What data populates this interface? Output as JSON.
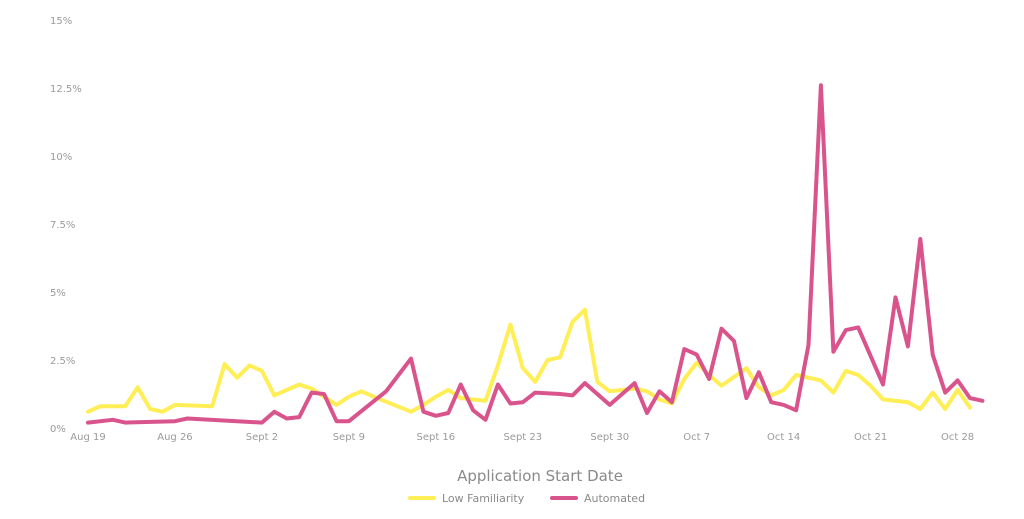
{
  "chart_data": {
    "type": "line",
    "title": "",
    "xlabel": "Application Start Date",
    "ylabel": "",
    "ylim": [
      0,
      15
    ],
    "y_ticks": [
      {
        "value": 0,
        "label": "0%"
      },
      {
        "value": 2.5,
        "label": "2.5%"
      },
      {
        "value": 5,
        "label": "5%"
      },
      {
        "value": 7.5,
        "label": "7.5%"
      },
      {
        "value": 10,
        "label": "10%"
      },
      {
        "value": 12.5,
        "label": "12.5%"
      },
      {
        "value": 15,
        "label": "15%"
      }
    ],
    "xlim": [
      "2024-08-19",
      "2024-10-29"
    ],
    "x_ticks": [
      {
        "date": "2024-08-19",
        "label": "Aug 19"
      },
      {
        "date": "2024-08-26",
        "label": "Aug 26"
      },
      {
        "date": "2024-09-02",
        "label": "Sept 2"
      },
      {
        "date": "2024-09-09",
        "label": "Sept 9"
      },
      {
        "date": "2024-09-16",
        "label": "Sept 16"
      },
      {
        "date": "2024-09-23",
        "label": "Sept 23"
      },
      {
        "date": "2024-09-30",
        "label": "Sept 30"
      },
      {
        "date": "2024-10-07",
        "label": "Oct 7"
      },
      {
        "date": "2024-10-14",
        "label": "Oct 14"
      },
      {
        "date": "2024-10-21",
        "label": "Oct 21"
      },
      {
        "date": "2024-10-28",
        "label": "Oct 28"
      }
    ],
    "grid": false,
    "legend_position": "bottom-center",
    "series": [
      {
        "name": "Low Familiarity",
        "color": "#ffee55",
        "points": [
          [
            "2024-08-19",
            0.6
          ],
          [
            "2024-08-20",
            0.8
          ],
          [
            "2024-08-22",
            0.8
          ],
          [
            "2024-08-23",
            1.5
          ],
          [
            "2024-08-24",
            0.7
          ],
          [
            "2024-08-25",
            0.6
          ],
          [
            "2024-08-26",
            0.85
          ],
          [
            "2024-08-29",
            0.8
          ],
          [
            "2024-08-30",
            2.35
          ],
          [
            "2024-08-31",
            1.85
          ],
          [
            "2024-09-01",
            2.3
          ],
          [
            "2024-09-02",
            2.1
          ],
          [
            "2024-09-03",
            1.2
          ],
          [
            "2024-09-05",
            1.6
          ],
          [
            "2024-09-06",
            1.45
          ],
          [
            "2024-09-08",
            0.85
          ],
          [
            "2024-09-09",
            1.15
          ],
          [
            "2024-09-10",
            1.35
          ],
          [
            "2024-09-11",
            1.15
          ],
          [
            "2024-09-14",
            0.6
          ],
          [
            "2024-09-15",
            0.85
          ],
          [
            "2024-09-16",
            1.15
          ],
          [
            "2024-09-17",
            1.4
          ],
          [
            "2024-09-18",
            1.1
          ],
          [
            "2024-09-20",
            1.0
          ],
          [
            "2024-09-21",
            2.3
          ],
          [
            "2024-09-22",
            3.8
          ],
          [
            "2024-09-23",
            2.2
          ],
          [
            "2024-09-24",
            1.7
          ],
          [
            "2024-09-25",
            2.5
          ],
          [
            "2024-09-26",
            2.6
          ],
          [
            "2024-09-27",
            3.9
          ],
          [
            "2024-09-28",
            4.35
          ],
          [
            "2024-09-29",
            1.7
          ],
          [
            "2024-09-30",
            1.35
          ],
          [
            "2024-10-02",
            1.45
          ],
          [
            "2024-10-03",
            1.35
          ],
          [
            "2024-10-04",
            1.05
          ],
          [
            "2024-10-05",
            0.9
          ],
          [
            "2024-10-06",
            1.8
          ],
          [
            "2024-10-07",
            2.4
          ],
          [
            "2024-10-08",
            1.95
          ],
          [
            "2024-10-09",
            1.55
          ],
          [
            "2024-10-11",
            2.2
          ],
          [
            "2024-10-12",
            1.5
          ],
          [
            "2024-10-13",
            1.2
          ],
          [
            "2024-10-14",
            1.4
          ],
          [
            "2024-10-15",
            1.95
          ],
          [
            "2024-10-17",
            1.75
          ],
          [
            "2024-10-18",
            1.3
          ],
          [
            "2024-10-19",
            2.1
          ],
          [
            "2024-10-20",
            1.95
          ],
          [
            "2024-10-21",
            1.55
          ],
          [
            "2024-10-22",
            1.05
          ],
          [
            "2024-10-24",
            0.95
          ],
          [
            "2024-10-25",
            0.7
          ],
          [
            "2024-10-26",
            1.3
          ],
          [
            "2024-10-27",
            0.7
          ],
          [
            "2024-10-28",
            1.4
          ],
          [
            "2024-10-29",
            0.75
          ]
        ]
      },
      {
        "name": "Automated",
        "color": "#d9548c",
        "points": [
          [
            "2024-08-19",
            0.2
          ],
          [
            "2024-08-21",
            0.3
          ],
          [
            "2024-08-22",
            0.2
          ],
          [
            "2024-08-26",
            0.25
          ],
          [
            "2024-08-27",
            0.35
          ],
          [
            "2024-09-02",
            0.2
          ],
          [
            "2024-09-03",
            0.6
          ],
          [
            "2024-09-04",
            0.35
          ],
          [
            "2024-09-05",
            0.4
          ],
          [
            "2024-09-06",
            1.3
          ],
          [
            "2024-09-07",
            1.25
          ],
          [
            "2024-09-08",
            0.25
          ],
          [
            "2024-09-09",
            0.25
          ],
          [
            "2024-09-12",
            1.35
          ],
          [
            "2024-09-14",
            2.55
          ],
          [
            "2024-09-15",
            0.6
          ],
          [
            "2024-09-16",
            0.45
          ],
          [
            "2024-09-17",
            0.55
          ],
          [
            "2024-09-18",
            1.6
          ],
          [
            "2024-09-19",
            0.65
          ],
          [
            "2024-09-20",
            0.3
          ],
          [
            "2024-09-21",
            1.6
          ],
          [
            "2024-09-22",
            0.9
          ],
          [
            "2024-09-23",
            0.95
          ],
          [
            "2024-09-24",
            1.3
          ],
          [
            "2024-09-26",
            1.25
          ],
          [
            "2024-09-27",
            1.2
          ],
          [
            "2024-09-28",
            1.65
          ],
          [
            "2024-09-29",
            1.25
          ],
          [
            "2024-09-30",
            0.85
          ],
          [
            "2024-10-02",
            1.65
          ],
          [
            "2024-10-03",
            0.55
          ],
          [
            "2024-10-04",
            1.35
          ],
          [
            "2024-10-05",
            0.95
          ],
          [
            "2024-10-06",
            2.9
          ],
          [
            "2024-10-07",
            2.7
          ],
          [
            "2024-10-08",
            1.8
          ],
          [
            "2024-10-09",
            3.65
          ],
          [
            "2024-10-10",
            3.2
          ],
          [
            "2024-10-11",
            1.1
          ],
          [
            "2024-10-12",
            2.05
          ],
          [
            "2024-10-13",
            0.95
          ],
          [
            "2024-10-14",
            0.85
          ],
          [
            "2024-10-15",
            0.65
          ],
          [
            "2024-10-16",
            3.05
          ],
          [
            "2024-10-17",
            12.6
          ],
          [
            "2024-10-18",
            2.8
          ],
          [
            "2024-10-19",
            3.6
          ],
          [
            "2024-10-20",
            3.7
          ],
          [
            "2024-10-22",
            1.6
          ],
          [
            "2024-10-23",
            4.8
          ],
          [
            "2024-10-24",
            3.0
          ],
          [
            "2024-10-25",
            6.95
          ],
          [
            "2024-10-26",
            2.7
          ],
          [
            "2024-10-27",
            1.3
          ],
          [
            "2024-10-28",
            1.75
          ],
          [
            "2024-10-29",
            1.1
          ],
          [
            "2024-10-30",
            1.0
          ]
        ]
      }
    ]
  }
}
